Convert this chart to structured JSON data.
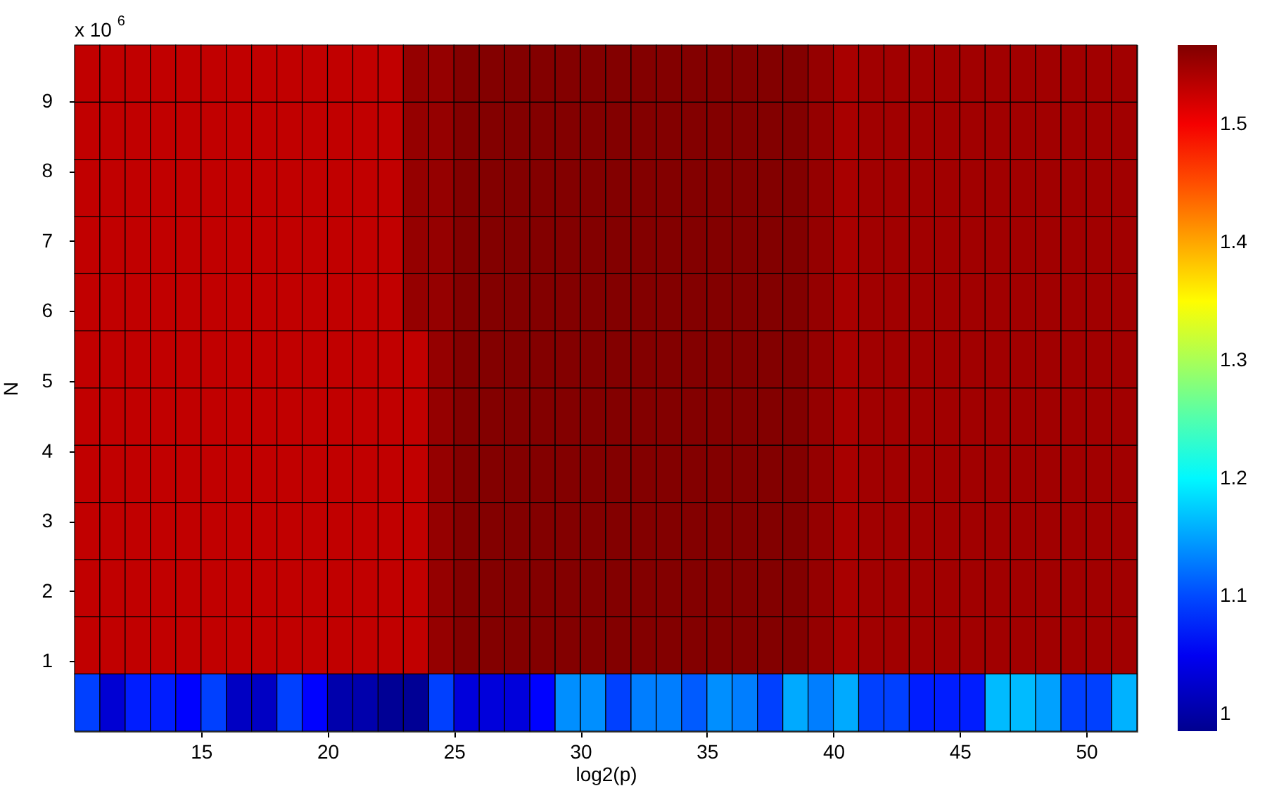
{
  "chart_data": {
    "type": "heatmap",
    "xlabel": "log2(p)",
    "ylabel": "N",
    "annotations": [
      "x 10$^{6}$"
    ],
    "xlim": [
      10,
      52
    ],
    "xticks": [
      15,
      20,
      25,
      30,
      35,
      40,
      45,
      50
    ],
    "ylim": [
      0,
      9.8
    ],
    "yticks": [
      1,
      2,
      3,
      4,
      5,
      6,
      7,
      8,
      9
    ],
    "clim": [
      0.986,
      1.567
    ],
    "cticks": [
      1,
      1.1,
      1.2,
      1.3,
      1.4,
      1.5
    ],
    "x": [
      10.5,
      11.5,
      12.5,
      13.5,
      14.5,
      15.5,
      16.5,
      17.5,
      18.5,
      19.5,
      20.5,
      21.5,
      22.5,
      23.5,
      24.5,
      25.5,
      26.5,
      27.5,
      28.5,
      29.5,
      30.5,
      31.5,
      32.5,
      33.5,
      34.5,
      35.5,
      36.5,
      37.5,
      38.5,
      39.5,
      40.5,
      41.5,
      42.5,
      43.5,
      44.5,
      45.5,
      46.5,
      47.5,
      48.5,
      49.5,
      50.5,
      51.5
    ],
    "cells": [
      [
        1.53,
        1.53,
        1.53,
        1.53,
        1.53,
        1.53,
        1.53,
        1.53,
        1.53,
        1.53,
        1.53,
        1.53,
        1.53,
        1.555,
        1.555,
        1.565,
        1.565,
        1.565,
        1.565,
        1.565,
        1.565,
        1.565,
        1.565,
        1.565,
        1.565,
        1.565,
        1.565,
        1.565,
        1.565,
        1.555,
        1.544,
        1.548,
        1.548,
        1.548,
        1.548,
        1.548,
        1.548,
        1.548,
        1.548,
        1.548,
        1.548,
        1.548
      ],
      [
        1.53,
        1.53,
        1.53,
        1.53,
        1.53,
        1.53,
        1.53,
        1.53,
        1.53,
        1.53,
        1.53,
        1.53,
        1.53,
        1.555,
        1.555,
        1.565,
        1.565,
        1.565,
        1.565,
        1.565,
        1.565,
        1.565,
        1.565,
        1.565,
        1.565,
        1.565,
        1.565,
        1.565,
        1.565,
        1.555,
        1.544,
        1.548,
        1.548,
        1.548,
        1.548,
        1.548,
        1.548,
        1.548,
        1.548,
        1.548,
        1.548,
        1.548
      ],
      [
        1.53,
        1.53,
        1.53,
        1.53,
        1.53,
        1.53,
        1.53,
        1.53,
        1.53,
        1.53,
        1.53,
        1.53,
        1.53,
        1.555,
        1.555,
        1.565,
        1.565,
        1.565,
        1.565,
        1.565,
        1.565,
        1.565,
        1.565,
        1.565,
        1.565,
        1.565,
        1.565,
        1.565,
        1.565,
        1.555,
        1.544,
        1.548,
        1.548,
        1.548,
        1.548,
        1.548,
        1.548,
        1.548,
        1.548,
        1.548,
        1.548,
        1.548
      ],
      [
        1.53,
        1.53,
        1.53,
        1.53,
        1.53,
        1.53,
        1.53,
        1.53,
        1.53,
        1.53,
        1.53,
        1.53,
        1.53,
        1.555,
        1.555,
        1.565,
        1.565,
        1.565,
        1.565,
        1.565,
        1.565,
        1.565,
        1.565,
        1.565,
        1.565,
        1.565,
        1.565,
        1.565,
        1.565,
        1.555,
        1.544,
        1.548,
        1.548,
        1.548,
        1.548,
        1.548,
        1.548,
        1.548,
        1.548,
        1.548,
        1.548,
        1.548
      ],
      [
        1.53,
        1.53,
        1.53,
        1.53,
        1.53,
        1.53,
        1.53,
        1.53,
        1.53,
        1.53,
        1.53,
        1.53,
        1.53,
        1.555,
        1.555,
        1.565,
        1.565,
        1.565,
        1.565,
        1.565,
        1.565,
        1.565,
        1.565,
        1.565,
        1.565,
        1.565,
        1.565,
        1.565,
        1.565,
        1.555,
        1.544,
        1.548,
        1.548,
        1.548,
        1.548,
        1.548,
        1.548,
        1.548,
        1.548,
        1.548,
        1.548,
        1.548
      ],
      [
        1.53,
        1.53,
        1.53,
        1.53,
        1.53,
        1.53,
        1.53,
        1.53,
        1.53,
        1.53,
        1.53,
        1.53,
        1.53,
        1.53,
        1.555,
        1.565,
        1.565,
        1.565,
        1.565,
        1.565,
        1.565,
        1.565,
        1.565,
        1.565,
        1.565,
        1.565,
        1.565,
        1.565,
        1.565,
        1.555,
        1.544,
        1.548,
        1.548,
        1.548,
        1.548,
        1.548,
        1.548,
        1.548,
        1.548,
        1.548,
        1.548,
        1.548
      ],
      [
        1.53,
        1.53,
        1.53,
        1.53,
        1.53,
        1.53,
        1.53,
        1.53,
        1.53,
        1.53,
        1.53,
        1.53,
        1.53,
        1.53,
        1.555,
        1.565,
        1.565,
        1.565,
        1.565,
        1.565,
        1.565,
        1.565,
        1.565,
        1.565,
        1.565,
        1.565,
        1.565,
        1.565,
        1.565,
        1.555,
        1.544,
        1.548,
        1.548,
        1.548,
        1.548,
        1.548,
        1.548,
        1.548,
        1.548,
        1.548,
        1.548,
        1.548
      ],
      [
        1.53,
        1.53,
        1.53,
        1.53,
        1.53,
        1.53,
        1.53,
        1.53,
        1.53,
        1.53,
        1.53,
        1.53,
        1.53,
        1.53,
        1.555,
        1.565,
        1.565,
        1.565,
        1.565,
        1.565,
        1.565,
        1.565,
        1.565,
        1.565,
        1.565,
        1.565,
        1.565,
        1.565,
        1.565,
        1.555,
        1.544,
        1.548,
        1.548,
        1.548,
        1.548,
        1.548,
        1.548,
        1.548,
        1.548,
        1.548,
        1.548,
        1.548
      ],
      [
        1.53,
        1.53,
        1.53,
        1.53,
        1.53,
        1.53,
        1.53,
        1.53,
        1.53,
        1.53,
        1.53,
        1.53,
        1.53,
        1.53,
        1.555,
        1.565,
        1.565,
        1.565,
        1.565,
        1.565,
        1.565,
        1.565,
        1.565,
        1.565,
        1.565,
        1.565,
        1.565,
        1.565,
        1.565,
        1.555,
        1.544,
        1.548,
        1.548,
        1.548,
        1.548,
        1.548,
        1.548,
        1.548,
        1.548,
        1.548,
        1.548,
        1.548
      ],
      [
        1.53,
        1.53,
        1.53,
        1.53,
        1.53,
        1.53,
        1.53,
        1.53,
        1.53,
        1.53,
        1.53,
        1.53,
        1.53,
        1.53,
        1.555,
        1.565,
        1.565,
        1.565,
        1.565,
        1.565,
        1.565,
        1.565,
        1.565,
        1.565,
        1.565,
        1.565,
        1.565,
        1.565,
        1.565,
        1.555,
        1.544,
        1.548,
        1.548,
        1.548,
        1.548,
        1.548,
        1.548,
        1.548,
        1.548,
        1.548,
        1.548,
        1.548
      ],
      [
        1.53,
        1.53,
        1.53,
        1.53,
        1.53,
        1.53,
        1.53,
        1.53,
        1.53,
        1.53,
        1.53,
        1.53,
        1.53,
        1.53,
        1.555,
        1.565,
        1.565,
        1.565,
        1.565,
        1.565,
        1.565,
        1.565,
        1.565,
        1.565,
        1.565,
        1.565,
        1.565,
        1.565,
        1.565,
        1.555,
        1.544,
        1.548,
        1.548,
        1.548,
        1.548,
        1.548,
        1.548,
        1.548,
        1.548,
        1.548,
        1.548,
        1.548
      ],
      [
        1.095,
        1.03,
        1.075,
        1.075,
        1.06,
        1.095,
        1.02,
        1.02,
        1.095,
        1.06,
        1.005,
        1.005,
        0.99,
        0.99,
        1.095,
        1.035,
        1.035,
        1.035,
        1.06,
        1.14,
        1.14,
        1.095,
        1.13,
        1.13,
        1.11,
        1.14,
        1.13,
        1.095,
        1.155,
        1.13,
        1.155,
        1.095,
        1.095,
        1.075,
        1.075,
        1.075,
        1.165,
        1.165,
        1.15,
        1.095,
        1.095,
        1.16
      ]
    ]
  }
}
